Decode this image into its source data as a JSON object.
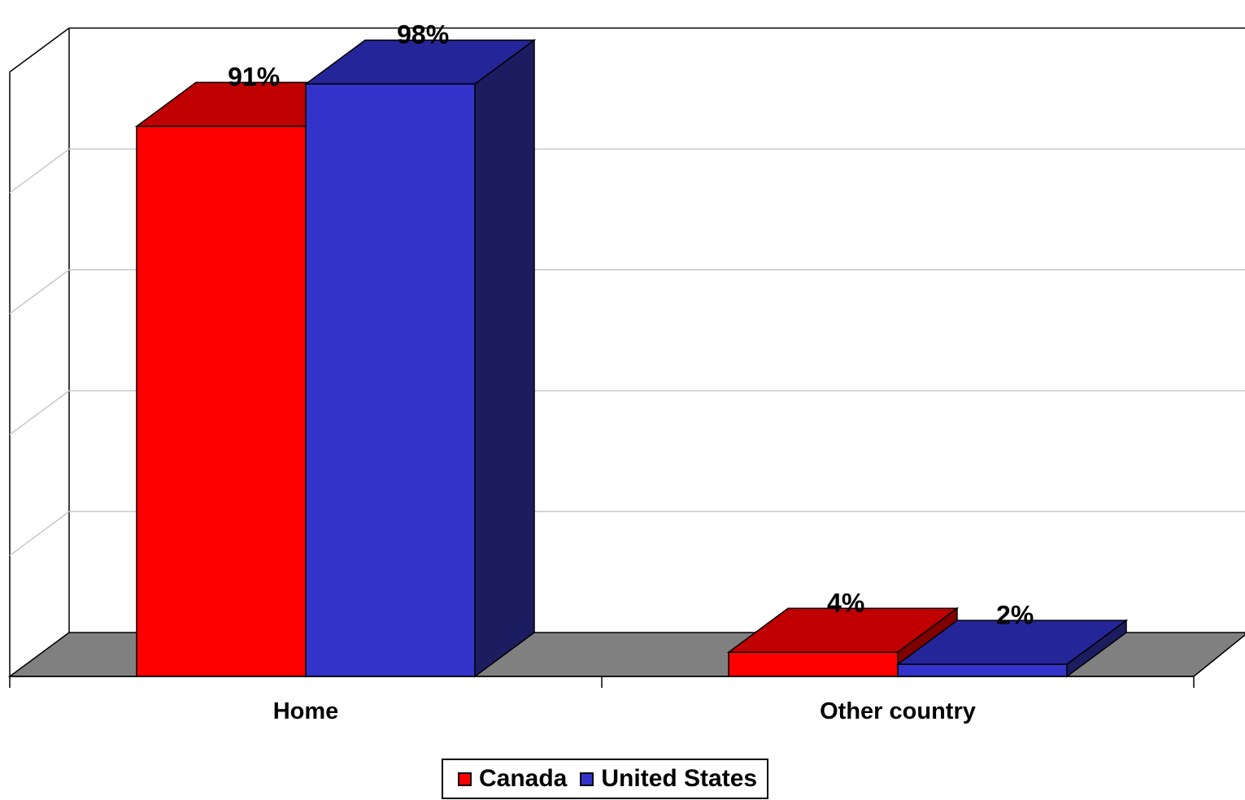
{
  "chart_data": {
    "type": "bar",
    "title": "",
    "xlabel": "",
    "ylabel": "",
    "ylim": [
      0,
      100
    ],
    "grid": true,
    "legend_position": "bottom",
    "categories": [
      "Home",
      "Other country"
    ],
    "series": [
      {
        "name": "Canada",
        "values": [
          91,
          4
        ],
        "labels": [
          "91%",
          "4%"
        ],
        "color": "#ff0000",
        "top_color": "#c00000",
        "side_color": "#800000"
      },
      {
        "name": "United States",
        "values": [
          98,
          2
        ],
        "labels": [
          "98%",
          "2%"
        ],
        "color": "#3333cc",
        "top_color": "#25259a",
        "side_color": "#1c1c60"
      }
    ]
  }
}
